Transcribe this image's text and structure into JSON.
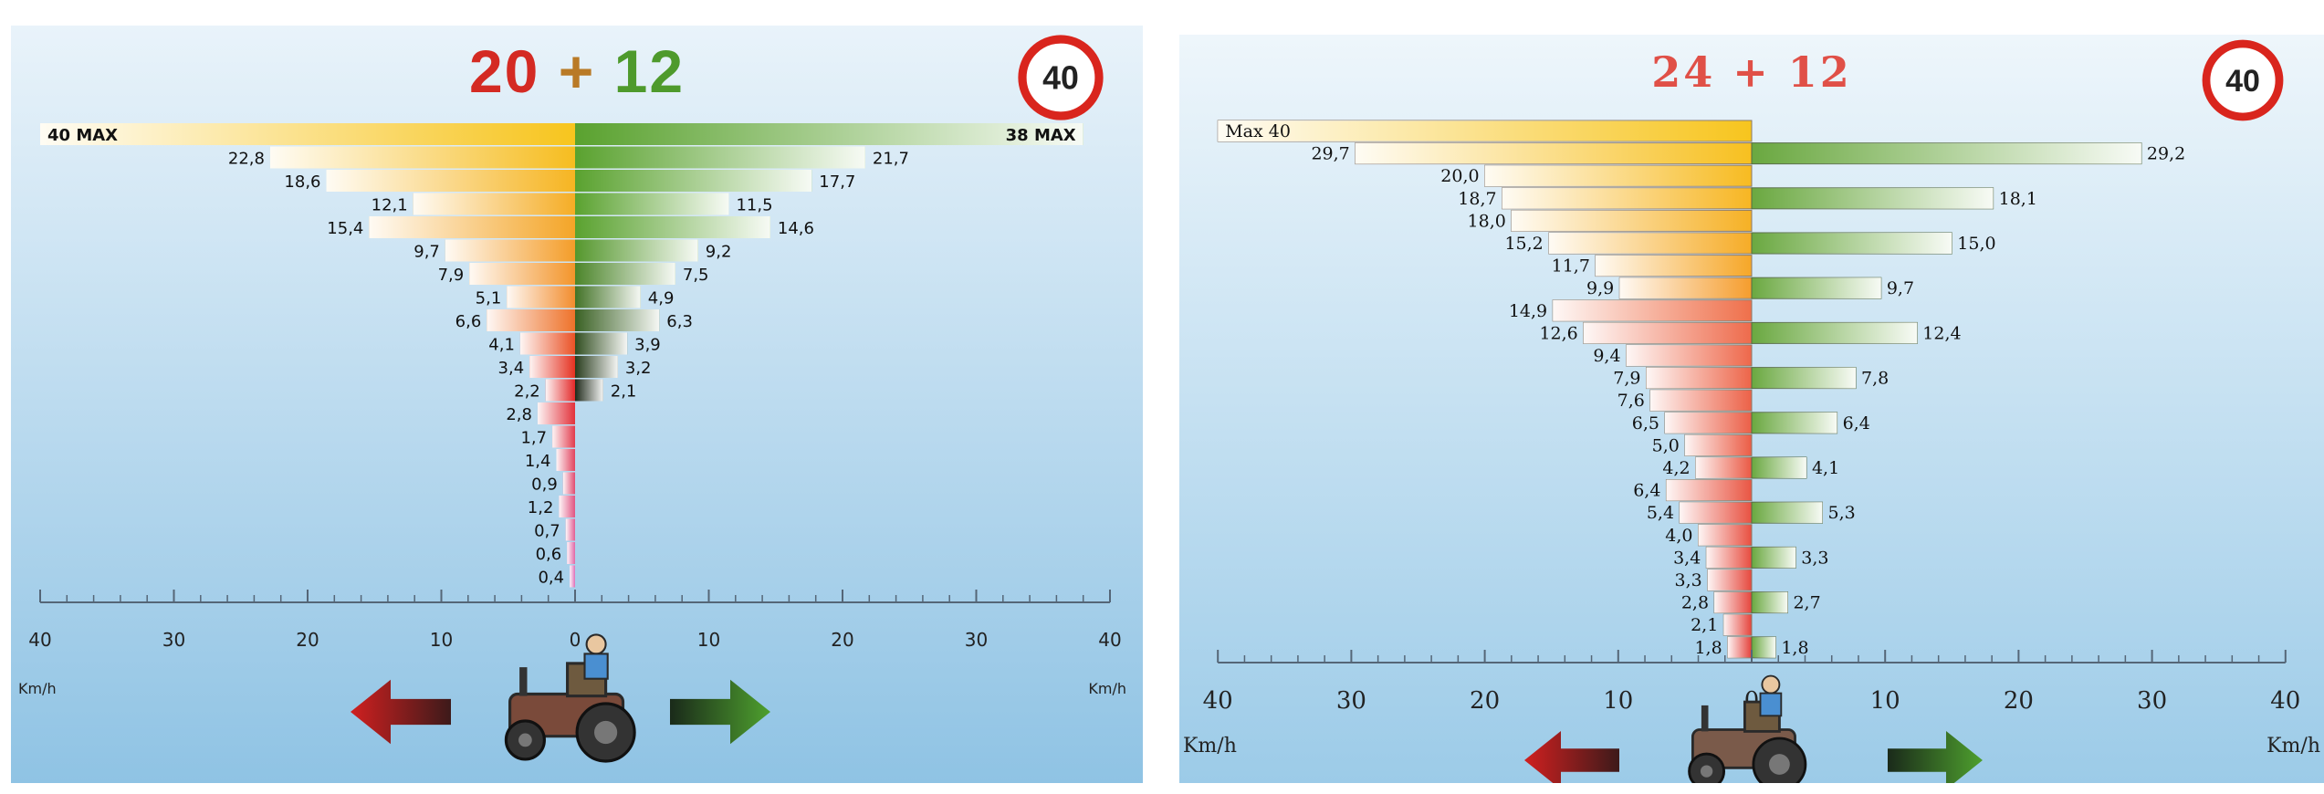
{
  "chart_data": [
    {
      "type": "bar",
      "title_left": "20",
      "title_op": "+",
      "title_right": "12",
      "badge": "40",
      "unit_left": "Km/h",
      "unit_right": "Km/h",
      "xlim": [
        -40,
        40
      ],
      "xticks": [
        "40",
        "30",
        "20",
        "10",
        "0",
        "10",
        "20",
        "30",
        "40"
      ],
      "left_series": [
        {
          "value": 40,
          "label": "40 MAX"
        },
        {
          "value": 22.8,
          "label": "22,8"
        },
        {
          "value": 18.6,
          "label": "18,6"
        },
        {
          "value": 12.1,
          "label": "12,1"
        },
        {
          "value": 15.4,
          "label": "15,4"
        },
        {
          "value": 9.7,
          "label": "9,7"
        },
        {
          "value": 7.9,
          "label": "7,9"
        },
        {
          "value": 5.1,
          "label": "5,1"
        },
        {
          "value": 6.6,
          "label": "6,6"
        },
        {
          "value": 4.1,
          "label": "4,1"
        },
        {
          "value": 3.4,
          "label": "3,4"
        },
        {
          "value": 2.2,
          "label": "2,2"
        },
        {
          "value": 2.8,
          "label": "2,8"
        },
        {
          "value": 1.7,
          "label": "1,7"
        },
        {
          "value": 1.4,
          "label": "1,4"
        },
        {
          "value": 0.9,
          "label": "0,9"
        },
        {
          "value": 1.2,
          "label": "1,2"
        },
        {
          "value": 0.7,
          "label": "0,7"
        },
        {
          "value": 0.6,
          "label": "0,6"
        },
        {
          "value": 0.4,
          "label": "0,4"
        }
      ],
      "right_series": [
        {
          "value": 38,
          "label": "38 MAX"
        },
        {
          "value": 21.7,
          "label": "21,7"
        },
        {
          "value": 17.7,
          "label": "17,7"
        },
        {
          "value": 11.5,
          "label": "11,5"
        },
        {
          "value": 14.6,
          "label": "14,6"
        },
        {
          "value": 9.2,
          "label": "9,2"
        },
        {
          "value": 7.5,
          "label": "7,5"
        },
        {
          "value": 4.9,
          "label": "4,9"
        },
        {
          "value": 6.3,
          "label": "6,3"
        },
        {
          "value": 3.9,
          "label": "3,9"
        },
        {
          "value": 3.2,
          "label": "3,2"
        },
        {
          "value": 2.1,
          "label": "2,1"
        }
      ],
      "colors": {
        "bg_top": "#e9f3fa",
        "bg_bottom": "#8fc3e4",
        "red": "#d42a23",
        "green": "#4e9a2c",
        "yellow": "#f4c21e"
      }
    },
    {
      "type": "bar",
      "title_left": "24",
      "title_op": "+",
      "title_right": "12",
      "badge": "40",
      "unit_left": "Km/h",
      "unit_right": "Km/h",
      "xlim": [
        -40,
        40
      ],
      "xticks": [
        "40",
        "30",
        "20",
        "10",
        "0",
        "10",
        "20",
        "30",
        "40"
      ],
      "left_series": [
        {
          "value": 40,
          "label": "Max 40"
        },
        {
          "value": 29.7,
          "label": "29,7"
        },
        {
          "value": 20.0,
          "label": "20,0"
        },
        {
          "value": 18.7,
          "label": "18,7"
        },
        {
          "value": 18.0,
          "label": "18,0"
        },
        {
          "value": 15.2,
          "label": "15,2"
        },
        {
          "value": 11.7,
          "label": "11,7"
        },
        {
          "value": 9.9,
          "label": "9,9"
        },
        {
          "value": 14.9,
          "label": "14,9"
        },
        {
          "value": 12.6,
          "label": "12,6"
        },
        {
          "value": 9.4,
          "label": "9,4"
        },
        {
          "value": 7.9,
          "label": "7,9"
        },
        {
          "value": 7.6,
          "label": "7,6"
        },
        {
          "value": 6.5,
          "label": "6,5"
        },
        {
          "value": 5.0,
          "label": "5,0"
        },
        {
          "value": 4.2,
          "label": "4,2"
        },
        {
          "value": 6.4,
          "label": "6,4"
        },
        {
          "value": 5.4,
          "label": "5,4"
        },
        {
          "value": 4.0,
          "label": "4,0"
        },
        {
          "value": 3.4,
          "label": "3,4"
        },
        {
          "value": 3.3,
          "label": "3,3"
        },
        {
          "value": 2.8,
          "label": "2,8"
        },
        {
          "value": 2.1,
          "label": "2,1"
        },
        {
          "value": 1.8,
          "label": "1,8"
        }
      ],
      "right_series": [
        {
          "row": 1,
          "value": 29.2,
          "label": "29,2"
        },
        {
          "row": 3,
          "value": 18.1,
          "label": "18,1"
        },
        {
          "row": 5,
          "value": 15.0,
          "label": "15,0"
        },
        {
          "row": 7,
          "value": 9.7,
          "label": "9,7"
        },
        {
          "row": 9,
          "value": 12.4,
          "label": "12,4"
        },
        {
          "row": 11,
          "value": 7.8,
          "label": "7,8"
        },
        {
          "row": 13,
          "value": 6.4,
          "label": "6,4"
        },
        {
          "row": 15,
          "value": 4.1,
          "label": "4,1"
        },
        {
          "row": 17,
          "value": 5.3,
          "label": "5,3"
        },
        {
          "row": 19,
          "value": 3.3,
          "label": "3,3"
        },
        {
          "row": 21,
          "value": 2.7,
          "label": "2,7"
        },
        {
          "row": 23,
          "value": 1.8,
          "label": "1,8"
        }
      ],
      "colors": {
        "bg_top": "#eef6fb",
        "bg_bottom": "#9ccbe8",
        "red": "#e05047",
        "green": "#6aa840",
        "yellow": "#f4c21e"
      }
    }
  ]
}
